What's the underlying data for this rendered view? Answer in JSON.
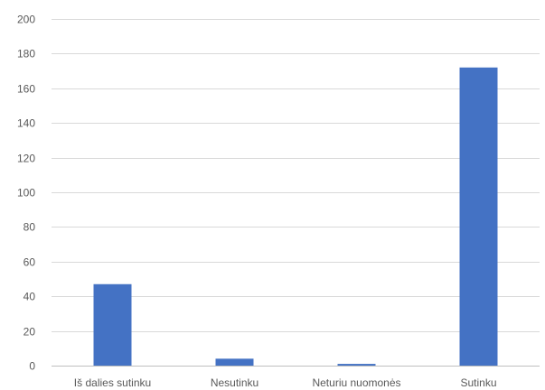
{
  "chart_data": {
    "type": "bar",
    "categories": [
      "Iš dalies sutinku",
      "Nesutinku",
      "Neturiu nuomonės",
      "Sutinku"
    ],
    "values": [
      47,
      4,
      1,
      172
    ],
    "title": "",
    "xlabel": "",
    "ylabel": "",
    "ylim": [
      0,
      200
    ],
    "yticks": [
      0,
      20,
      40,
      60,
      80,
      100,
      120,
      140,
      160,
      180,
      200
    ],
    "grid": true,
    "legend": "none",
    "bar_color": "#4472c4",
    "grid_color": "#d9d9d9"
  }
}
